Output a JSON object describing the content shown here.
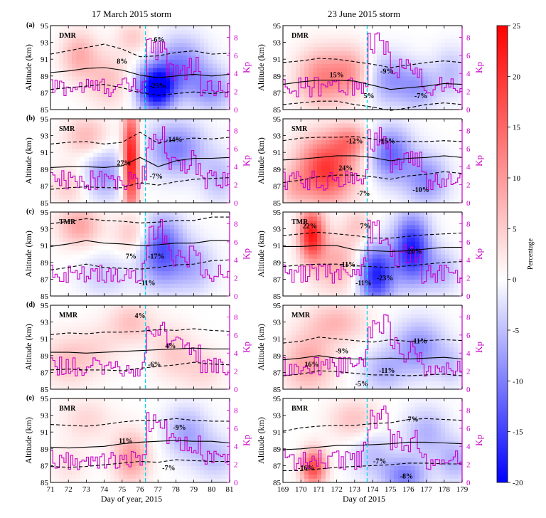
{
  "columns": [
    {
      "title": "17 March 2015 storm",
      "xlabel": "Day of year, 2015",
      "xlim": [
        71,
        81
      ],
      "ticks": [
        71,
        72,
        73,
        74,
        75,
        76,
        77,
        78,
        79,
        80,
        81
      ],
      "storm_day": 76.3
    },
    {
      "title": "23 June 2015 storm",
      "xlabel": "Day of 2015",
      "xlim": [
        169,
        179
      ],
      "ticks": [
        169,
        170,
        171,
        172,
        173,
        174,
        175,
        176,
        177,
        178,
        179
      ],
      "storm_day": 173.7
    }
  ],
  "panels": [
    {
      "letter": "(a)",
      "name": "DMR"
    },
    {
      "letter": "(b)",
      "name": "SMR"
    },
    {
      "letter": "(c)",
      "name": "TMR"
    },
    {
      "letter": "(d)",
      "name": "MMR"
    },
    {
      "letter": "(e)",
      "name": "BMR"
    }
  ],
  "axes": {
    "ylabel": "Altitude (km)",
    "yticks": [
      85,
      87,
      89,
      91,
      93,
      95
    ],
    "ylim": [
      85,
      95
    ],
    "kp_label": "Kp",
    "kp_ticks": [
      0,
      2,
      4,
      6,
      8
    ],
    "kp_lim": [
      0,
      9.3
    ]
  },
  "colorbar": {
    "label": "Percentage",
    "ticks": [
      25,
      20,
      15,
      10,
      5,
      0,
      -5,
      -10,
      -15,
      -20
    ],
    "range": [
      -20,
      25
    ],
    "colors": {
      "positive": "#ff0000",
      "zero": "#ffffff",
      "negative": "#0000ff"
    }
  },
  "colors": {
    "kp_line": "#c800c8",
    "storm_line": "#00d8ea",
    "contour": "#000000"
  },
  "chart_data": [
    {
      "type": "heatmap",
      "col": 0,
      "row": 0,
      "panel": "DMR",
      "contours": {
        "mean": [
          89.4,
          89.6,
          89.9,
          90.0,
          89.7,
          89.1,
          88.8,
          89.0,
          89.2,
          89.0,
          89.2
        ],
        "upper": [
          91.6,
          92.0,
          92.4,
          92.8,
          92.2,
          91.3,
          91.4,
          91.8,
          92.0,
          91.6,
          91.7
        ],
        "lower": [
          87.4,
          87.6,
          87.8,
          88.0,
          87.6,
          87.0,
          86.7,
          86.9,
          87.1,
          86.9,
          87.1
        ]
      },
      "blobs": [
        [
          72.6,
          91.5,
          1.0,
          2.8,
          8
        ],
        [
          74.2,
          88.6,
          1.2,
          3.2,
          6
        ],
        [
          76.9,
          87.6,
          1.0,
          2.6,
          -23
        ],
        [
          78.3,
          90.2,
          1.4,
          3.4,
          -10
        ],
        [
          80.0,
          87.4,
          1.2,
          2.6,
          -8
        ],
        [
          75.6,
          93.6,
          0.9,
          1.8,
          5
        ]
      ],
      "annotations": [
        {
          "text": "8%",
          "x": 75.0,
          "y": 90.8
        },
        {
          "text": "-6%",
          "x": 77.0,
          "y": 93.4
        },
        {
          "text": "-23%",
          "x": 77.0,
          "y": 87.9
        }
      ]
    },
    {
      "type": "heatmap",
      "col": 1,
      "row": 0,
      "panel": "DMR",
      "contours": {
        "mean": [
          88.0,
          88.3,
          88.5,
          88.5,
          88.4,
          87.9,
          87.4,
          87.6,
          87.8,
          88.1,
          88.0
        ],
        "upper": [
          90.6,
          90.8,
          91.1,
          91.0,
          90.7,
          90.4,
          90.0,
          90.3,
          90.6,
          90.8,
          90.6
        ],
        "lower": [
          85.6,
          85.8,
          86.0,
          86.0,
          85.6,
          85.3,
          84.9,
          85.2,
          85.6,
          85.8,
          85.6
        ]
      },
      "blobs": [
        [
          171.2,
          88.8,
          1.4,
          3.4,
          12
        ],
        [
          172.8,
          89.5,
          1.0,
          3.0,
          8
        ],
        [
          175.0,
          88.6,
          1.2,
          3.0,
          -8
        ],
        [
          176.6,
          87.6,
          1.0,
          2.6,
          -7
        ],
        [
          178.4,
          89.4,
          1.0,
          3.0,
          -5
        ]
      ],
      "annotations": [
        {
          "text": "15%",
          "x": 172.0,
          "y": 89.2
        },
        {
          "text": "-9%",
          "x": 174.8,
          "y": 89.6
        },
        {
          "text": "5%",
          "x": 173.8,
          "y": 86.7
        },
        {
          "text": "-7%",
          "x": 176.7,
          "y": 86.7
        }
      ]
    },
    {
      "type": "heatmap",
      "col": 0,
      "row": 1,
      "panel": "SMR",
      "contours": {
        "mean": [
          89.2,
          89.3,
          89.3,
          89.2,
          89.4,
          90.4,
          89.3,
          90.0,
          90.3,
          90.3,
          90.4
        ],
        "upper": [
          92.0,
          92.2,
          92.3,
          92.0,
          92.2,
          93.4,
          92.1,
          92.5,
          92.7,
          92.6,
          92.8
        ],
        "lower": [
          86.6,
          86.8,
          86.9,
          86.8,
          86.8,
          87.4,
          87.1,
          87.5,
          87.8,
          87.9,
          88.0
        ]
      },
      "blobs": [
        [
          75.5,
          90.0,
          0.45,
          6.0,
          25
        ],
        [
          73.0,
          93.0,
          1.2,
          2.4,
          7
        ],
        [
          74.0,
          88.5,
          1.2,
          3.0,
          -8
        ],
        [
          78.0,
          91.5,
          1.6,
          3.2,
          -10
        ],
        [
          80.4,
          88.0,
          1.0,
          3.0,
          -5
        ],
        [
          72.0,
          87.0,
          1.0,
          2.4,
          5
        ]
      ],
      "annotations": [
        {
          "text": "-14%",
          "x": 77.9,
          "y": 92.6
        },
        {
          "text": "27%",
          "x": 75.1,
          "y": 89.8
        },
        {
          "text": "-7%",
          "x": 76.9,
          "y": 88.2
        }
      ]
    },
    {
      "type": "heatmap",
      "col": 1,
      "row": 1,
      "panel": "SMR",
      "contours": {
        "mean": [
          90.1,
          90.2,
          90.4,
          90.6,
          90.6,
          90.4,
          90.0,
          90.3,
          90.4,
          90.6,
          90.4
        ],
        "upper": [
          92.4,
          92.7,
          92.8,
          92.8,
          92.9,
          92.6,
          92.3,
          92.3,
          92.3,
          92.4,
          92.3
        ],
        "lower": [
          87.4,
          87.7,
          88.1,
          88.3,
          88.3,
          88.1,
          87.8,
          88.2,
          88.4,
          88.7,
          88.5
        ]
      },
      "blobs": [
        [
          171.4,
          89.0,
          1.6,
          4.0,
          20
        ],
        [
          172.8,
          92.4,
          1.0,
          2.0,
          10
        ],
        [
          175.0,
          90.8,
          1.2,
          3.2,
          -12
        ],
        [
          177.0,
          87.8,
          1.2,
          3.0,
          -9
        ],
        [
          169.6,
          86.8,
          0.8,
          2.2,
          5
        ]
      ],
      "annotations": [
        {
          "text": "-12%",
          "x": 173.0,
          "y": 92.4
        },
        {
          "text": "-15%",
          "x": 174.8,
          "y": 92.4
        },
        {
          "text": "24%",
          "x": 172.5,
          "y": 89.2
        },
        {
          "text": "-7%",
          "x": 173.5,
          "y": 86.2
        },
        {
          "text": "-10%",
          "x": 176.7,
          "y": 86.6
        }
      ]
    },
    {
      "type": "heatmap",
      "col": 0,
      "row": 2,
      "panel": "TMR",
      "contours": {
        "mean": [
          90.9,
          91.2,
          91.6,
          91.3,
          91.2,
          91.0,
          91.1,
          91.3,
          91.3,
          91.6,
          91.6
        ],
        "upper": [
          93.6,
          93.9,
          94.2,
          94.0,
          93.9,
          93.7,
          93.8,
          94.0,
          94.0,
          94.4,
          94.4
        ],
        "lower": [
          88.1,
          88.4,
          88.8,
          88.4,
          88.3,
          88.2,
          88.4,
          88.7,
          88.8,
          89.2,
          89.3
        ]
      },
      "blobs": [
        [
          72.6,
          93.4,
          1.2,
          2.4,
          9
        ],
        [
          75.6,
          92.5,
          1.0,
          2.4,
          6
        ],
        [
          77.2,
          90.5,
          1.2,
          4.0,
          -14
        ],
        [
          79.0,
          88.5,
          1.2,
          3.0,
          -6
        ],
        [
          74.0,
          87.5,
          1.4,
          2.6,
          -4
        ]
      ],
      "annotations": [
        {
          "text": "7%",
          "x": 75.5,
          "y": 89.8
        },
        {
          "text": "-17%",
          "x": 76.9,
          "y": 89.8
        },
        {
          "text": "-11%",
          "x": 76.4,
          "y": 86.6
        }
      ]
    },
    {
      "type": "heatmap",
      "col": 1,
      "row": 2,
      "panel": "TMR",
      "contours": {
        "mean": [
          90.9,
          90.9,
          91.0,
          91.0,
          90.5,
          90.4,
          90.3,
          90.4,
          90.6,
          90.8,
          90.8
        ],
        "upper": [
          92.2,
          92.4,
          92.6,
          92.4,
          92.2,
          91.9,
          91.9,
          92.1,
          92.3,
          92.4,
          92.5
        ],
        "lower": [
          88.5,
          88.7,
          88.8,
          88.8,
          88.6,
          88.5,
          88.4,
          88.6,
          88.8,
          89.0,
          89.1
        ]
      },
      "blobs": [
        [
          170.6,
          92.4,
          0.7,
          3.0,
          22
        ],
        [
          172.0,
          89.0,
          1.4,
          3.6,
          8
        ],
        [
          174.2,
          87.6,
          1.0,
          3.4,
          -18
        ],
        [
          176.2,
          90.6,
          1.0,
          4.0,
          -18
        ],
        [
          177.8,
          88.0,
          1.0,
          2.6,
          -6
        ],
        [
          173.2,
          93.4,
          0.8,
          2.0,
          5
        ]
      ],
      "annotations": [
        {
          "text": "22%",
          "x": 170.5,
          "y": 93.4
        },
        {
          "text": "7%",
          "x": 173.6,
          "y": 93.4
        },
        {
          "text": "-11%",
          "x": 172.6,
          "y": 88.8
        },
        {
          "text": "-11%",
          "x": 173.5,
          "y": 86.6
        },
        {
          "text": "-23%",
          "x": 174.7,
          "y": 87.2
        },
        {
          "text": "-20%",
          "x": 176.3,
          "y": 90.4
        }
      ]
    },
    {
      "type": "heatmap",
      "col": 0,
      "row": 3,
      "panel": "MMR",
      "contours": {
        "mean": [
          89.4,
          89.4,
          89.3,
          89.4,
          89.5,
          89.6,
          89.7,
          89.8,
          89.9,
          89.8,
          89.8
        ],
        "upper": [
          91.5,
          91.7,
          91.6,
          91.8,
          91.8,
          91.9,
          92.1,
          92.0,
          92.2,
          92.0,
          91.9
        ],
        "lower": [
          87.3,
          87.4,
          87.3,
          87.3,
          87.2,
          87.5,
          87.7,
          87.9,
          88.2,
          88.0,
          87.9
        ]
      },
      "blobs": [
        [
          72.0,
          88.5,
          1.4,
          3.0,
          6
        ],
        [
          75.5,
          93.0,
          1.2,
          2.4,
          6
        ],
        [
          77.8,
          89.5,
          1.2,
          3.2,
          5
        ],
        [
          79.5,
          87.4,
          1.2,
          2.6,
          4
        ],
        [
          73.8,
          90.0,
          1.2,
          3.0,
          3
        ]
      ],
      "annotations": [
        {
          "text": "4%",
          "x": 76.0,
          "y": 93.8
        },
        {
          "text": "4%",
          "x": 77.7,
          "y": 90.2
        },
        {
          "text": "-6%",
          "x": 76.8,
          "y": 88.0
        }
      ]
    },
    {
      "type": "heatmap",
      "col": 1,
      "row": 3,
      "panel": "MMR",
      "contours": {
        "mean": [
          88.5,
          88.7,
          89.0,
          88.7,
          88.6,
          88.6,
          88.7,
          88.6,
          88.7,
          88.8,
          88.6
        ],
        "upper": [
          90.5,
          90.7,
          91.2,
          91.0,
          90.8,
          90.6,
          90.9,
          90.7,
          90.8,
          90.9,
          90.8
        ],
        "lower": [
          86.6,
          86.8,
          87.2,
          87.1,
          86.9,
          86.7,
          86.7,
          86.6,
          86.7,
          86.8,
          86.6
        ]
      },
      "blobs": [
        [
          170.4,
          88.2,
          1.4,
          3.6,
          9
        ],
        [
          172.0,
          93.0,
          1.6,
          2.4,
          7
        ],
        [
          174.6,
          87.2,
          1.2,
          2.6,
          -6
        ],
        [
          176.6,
          90.0,
          1.4,
          3.2,
          -9
        ],
        [
          178.4,
          87.8,
          0.8,
          2.4,
          -4
        ]
      ],
      "annotations": [
        {
          "text": "-9%",
          "x": 172.3,
          "y": 89.6
        },
        {
          "text": "16%",
          "x": 170.6,
          "y": 88.0
        },
        {
          "text": "-11%",
          "x": 174.8,
          "y": 87.3
        },
        {
          "text": "-5%",
          "x": 173.4,
          "y": 85.7
        },
        {
          "text": "-11%",
          "x": 176.6,
          "y": 90.8
        }
      ]
    },
    {
      "type": "heatmap",
      "col": 0,
      "row": 4,
      "panel": "BMR",
      "contours": {
        "mean": [
          89.2,
          89.1,
          89.2,
          89.3,
          89.6,
          89.8,
          89.9,
          90.0,
          89.9,
          89.9,
          89.7
        ],
        "upper": [
          91.9,
          91.8,
          91.7,
          91.9,
          92.2,
          92.4,
          92.4,
          92.6,
          92.4,
          92.3,
          92.3
        ],
        "lower": [
          86.9,
          86.8,
          86.9,
          87.1,
          87.3,
          87.5,
          87.4,
          87.7,
          87.6,
          87.5,
          87.5
        ]
      },
      "blobs": [
        [
          75.5,
          88.0,
          1.0,
          3.0,
          10
        ],
        [
          73.0,
          92.5,
          1.4,
          2.6,
          4
        ],
        [
          78.6,
          91.0,
          1.2,
          3.0,
          -7
        ],
        [
          80.2,
          88.0,
          1.2,
          2.6,
          -5
        ],
        [
          72.0,
          87.0,
          1.0,
          2.4,
          3
        ]
      ],
      "annotations": [
        {
          "text": "-9%",
          "x": 78.2,
          "y": 91.6
        },
        {
          "text": "11%",
          "x": 75.2,
          "y": 90.0
        },
        {
          "text": "-7%",
          "x": 77.6,
          "y": 86.8
        }
      ]
    },
    {
      "type": "heatmap",
      "col": 1,
      "row": 4,
      "panel": "BMR",
      "contours": {
        "mean": [
          88.9,
          89.0,
          89.2,
          89.4,
          89.4,
          89.5,
          89.6,
          89.8,
          89.8,
          89.7,
          89.6
        ],
        "upper": [
          91.1,
          91.5,
          91.7,
          91.8,
          91.8,
          92.0,
          92.1,
          92.5,
          92.6,
          92.5,
          92.4
        ],
        "lower": [
          86.4,
          86.4,
          86.6,
          86.8,
          86.9,
          87.0,
          87.1,
          87.3,
          87.3,
          87.2,
          87.2
        ]
      },
      "blobs": [
        [
          170.7,
          86.8,
          0.7,
          2.2,
          18
        ],
        [
          173.0,
          92.5,
          1.4,
          2.4,
          6
        ],
        [
          175.8,
          85.8,
          1.2,
          2.2,
          -10
        ],
        [
          174.0,
          88.5,
          1.2,
          3.0,
          -5
        ],
        [
          177.0,
          91.0,
          1.2,
          3.0,
          -6
        ],
        [
          178.6,
          87.6,
          1.0,
          2.6,
          -6
        ]
      ],
      "annotations": [
        {
          "text": "-7%",
          "x": 176.2,
          "y": 92.6
        },
        {
          "text": "-7%",
          "x": 174.4,
          "y": 87.6
        },
        {
          "text": "-16%",
          "x": 170.3,
          "y": 86.8
        },
        {
          "text": "-8%",
          "x": 175.9,
          "y": 85.8
        }
      ]
    }
  ]
}
